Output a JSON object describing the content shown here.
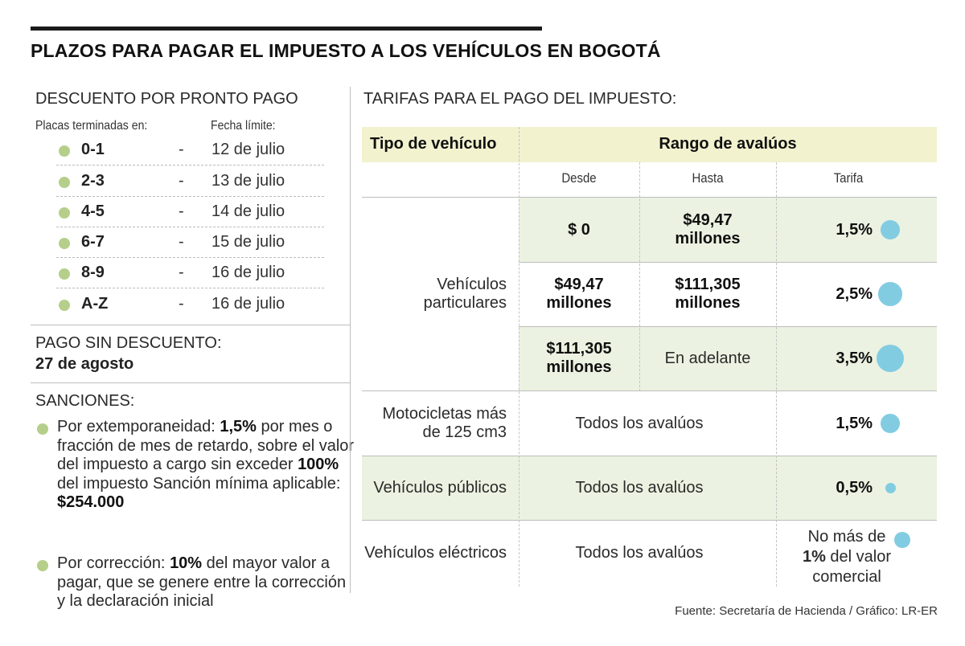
{
  "title": "PLAZOS PARA PAGAR EL IMPUESTO A LOS VEHÍCULOS EN BOGOTÁ",
  "discount": {
    "heading": "DESCUENTO POR PRONTO PAGO",
    "col_plates": "Placas terminadas en:",
    "col_date": "Fecha límite:",
    "rows": [
      {
        "plate": "0-1",
        "dash": "-",
        "date": "12 de julio"
      },
      {
        "plate": "2-3",
        "dash": "-",
        "date": "13 de julio"
      },
      {
        "plate": "4-5",
        "dash": "-",
        "date": "14 de julio"
      },
      {
        "plate": "6-7",
        "dash": "-",
        "date": "15 de julio"
      },
      {
        "plate": "8-9",
        "dash": "-",
        "date": "16 de julio"
      },
      {
        "plate": "A-Z",
        "dash": "-",
        "date": "16 de julio"
      }
    ]
  },
  "no_discount": {
    "heading": "PAGO SIN DESCUENTO:",
    "date": "27 de agosto"
  },
  "sanctions": {
    "heading": "SANCIONES:",
    "item1": {
      "p1": "Por extemporaneidad: ",
      "b1": "1,5%",
      "p2": " por mes o fracción de mes de retardo, sobre el valor del impuesto a cargo sin exceder ",
      "b2": "100%",
      "p3": " del impuesto Sanción mínima aplicable: ",
      "b3": "$254.000"
    },
    "item2": {
      "p1": "Por corrección: ",
      "b1": "10%",
      "p2": " del mayor valor a pagar, que se genere entre la corrección y la declaración inicial"
    }
  },
  "rates": {
    "heading": "TARIFAS PARA EL PAGO DEL IMPUESTO:",
    "col_type": "Tipo de vehículo",
    "col_range": "Rango de avalúos",
    "col_from": "Desde",
    "col_to": "Hasta",
    "col_rate": "Tarifa",
    "particulares_label": "Vehículos particulares",
    "rows_particulares": [
      {
        "from": "$ 0",
        "to": "$49,47 millones",
        "rate": "1,5%",
        "rate_value": 1.5
      },
      {
        "from": "$49,47 millones",
        "to": "$111,305 millones",
        "rate": "2,5%",
        "rate_value": 2.5
      },
      {
        "from": "$111,305 millones",
        "to": "En adelante",
        "rate": "3,5%",
        "rate_value": 3.5
      }
    ],
    "motos": {
      "label": "Motocicletas más de 125 cm3",
      "range": "Todos los avalúos",
      "rate": "1,5%",
      "rate_value": 1.5
    },
    "publicos": {
      "label": "Vehículos públicos",
      "range": "Todos los avalúos",
      "rate": "0,5%",
      "rate_value": 0.5
    },
    "electricos": {
      "label": "Vehículos eléctricos",
      "range": "Todos los avalúos",
      "rate_p1": "No más de ",
      "rate_b": "1%",
      "rate_p2": " del valor comercial",
      "rate_value": 1
    }
  },
  "source": "Fuente: Secretaría de Hacienda / Gráfico: LR-ER",
  "colors": {
    "accent_green": "#b5cf8a",
    "band_green": "#ebf2e1",
    "header_yellow": "#f2f2cf",
    "bubble_blue": "#82cce2"
  }
}
